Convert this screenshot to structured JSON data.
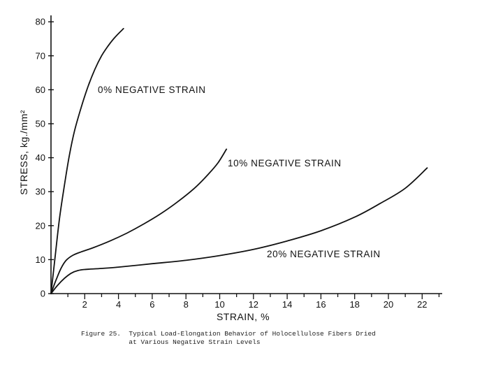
{
  "chart_data": {
    "type": "line",
    "title": "",
    "xlabel": "STRAIN, %",
    "ylabel": "STRESS, kg./mm²",
    "xlim": [
      0,
      23.5
    ],
    "ylim": [
      0,
      82
    ],
    "x_ticks": [
      2,
      4,
      6,
      8,
      10,
      12,
      14,
      16,
      18,
      20,
      22
    ],
    "y_ticks": [
      0,
      10,
      20,
      30,
      40,
      50,
      60,
      70,
      80
    ],
    "grid": false,
    "series": [
      {
        "name": "0% NEGATIVE STRAIN",
        "x": [
          0,
          0.25,
          0.5,
          0.8,
          1.1,
          1.4,
          1.8,
          2.2,
          2.6,
          3.0,
          3.4,
          3.8,
          4.3
        ],
        "y": [
          0,
          11,
          22,
          32,
          41,
          48,
          55,
          61,
          66,
          70,
          73,
          75.5,
          78
        ]
      },
      {
        "name": "10% NEGATIVE STRAIN",
        "x": [
          0,
          0.3,
          0.6,
          0.9,
          1.3,
          1.8,
          2.5,
          3.5,
          4.5,
          5.5,
          6.5,
          7.5,
          8.5,
          9.3,
          9.9,
          10.4
        ],
        "y": [
          0,
          4,
          7.5,
          9.8,
          11.3,
          12.3,
          13.5,
          15.5,
          17.8,
          20.5,
          23.5,
          27,
          31,
          35,
          38.5,
          42.5
        ]
      },
      {
        "name": "20% NEGATIVE STRAIN",
        "x": [
          0,
          0.4,
          0.8,
          1.2,
          1.6,
          2.0,
          3,
          4,
          6,
          8,
          10,
          12,
          14,
          16,
          18,
          19.5,
          21,
          22.3
        ],
        "y": [
          0,
          2.5,
          4.5,
          6.0,
          6.8,
          7.1,
          7.4,
          7.8,
          8.8,
          9.8,
          11.2,
          13,
          15.5,
          18.5,
          22.5,
          26.5,
          31,
          37
        ]
      }
    ]
  },
  "caption": {
    "line1": "Figure 25.  Typical Load-Elongation Behavior of Holocellulose Fibers Dried",
    "line2": "            at Various Negative Strain Levels"
  }
}
